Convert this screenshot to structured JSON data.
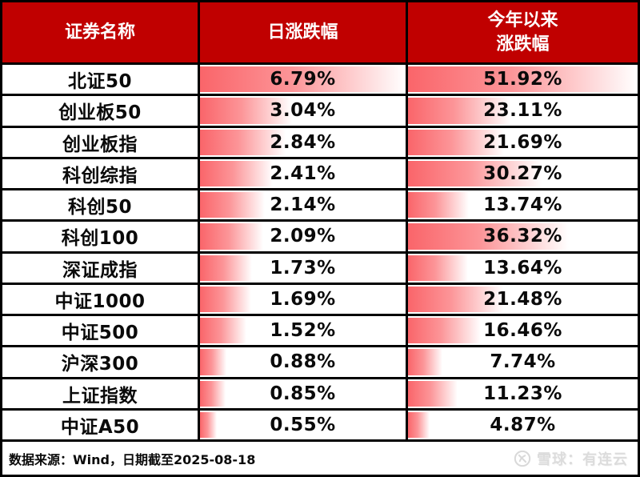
{
  "colors": {
    "header_bg": "#c00000",
    "border": "#000000",
    "bar_red": "#fa656a",
    "bar_mid": "#fc9598",
    "bar_end": "#ffffff",
    "row_bg": "#ffffff",
    "text": "#0a0a0a",
    "watermark": "#dcdcdc"
  },
  "table": {
    "columns": [
      {
        "label": "证券名称"
      },
      {
        "label": "日涨跌幅"
      },
      {
        "label": "今年以来\n涨跌幅"
      }
    ]
  },
  "chart_data": {
    "type": "table",
    "title": "",
    "columns": [
      "证券名称",
      "日涨跌幅",
      "今年以来涨跌幅"
    ],
    "bar_scale": {
      "daily_max": 6.79,
      "ytd_max": 51.92
    },
    "rows": [
      {
        "name": "北证50",
        "daily": 6.79,
        "ytd": 51.92
      },
      {
        "name": "创业板50",
        "daily": 3.04,
        "ytd": 23.11
      },
      {
        "name": "创业板指",
        "daily": 2.84,
        "ytd": 21.69
      },
      {
        "name": "科创综指",
        "daily": 2.41,
        "ytd": 30.27
      },
      {
        "name": "科创50",
        "daily": 2.14,
        "ytd": 13.74
      },
      {
        "name": "科创100",
        "daily": 2.09,
        "ytd": 36.32
      },
      {
        "name": "深证成指",
        "daily": 1.73,
        "ytd": 13.64
      },
      {
        "name": "中证1000",
        "daily": 1.69,
        "ytd": 21.48
      },
      {
        "name": "中证500",
        "daily": 1.52,
        "ytd": 16.46
      },
      {
        "name": "沪深300",
        "daily": 0.88,
        "ytd": 7.74
      },
      {
        "name": "上证指数",
        "daily": 0.85,
        "ytd": 11.23
      },
      {
        "name": "中证A50",
        "daily": 0.55,
        "ytd": 4.87
      }
    ]
  },
  "footer": {
    "source": "数据来源：Wind，日期截至2025-08-18",
    "watermark": "雪球：有连云",
    "watermark_logo": "xueqiu-circle-logo"
  }
}
